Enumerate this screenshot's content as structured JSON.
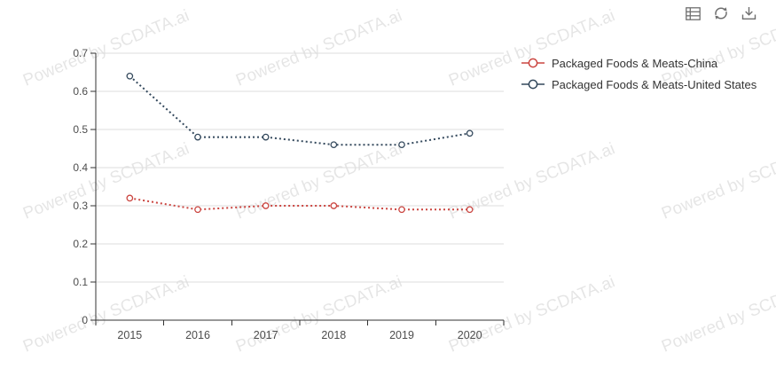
{
  "chart_data": {
    "type": "line",
    "title": "",
    "categories": [
      "2015",
      "2016",
      "2017",
      "2018",
      "2019",
      "2020"
    ],
    "series": [
      {
        "name": "Packaged Foods & Meats-China",
        "color": "#cb4641",
        "values": [
          0.32,
          0.29,
          0.3,
          0.3,
          0.29,
          0.29
        ]
      },
      {
        "name": "Packaged Foods & Meats-United States",
        "color": "#33485c",
        "values": [
          0.64,
          0.48,
          0.48,
          0.46,
          0.46,
          0.49
        ]
      }
    ],
    "xlabel": "",
    "ylabel": "",
    "ylim": [
      0,
      0.7
    ],
    "yticks": [
      "0",
      "0.1",
      "0.2",
      "0.3",
      "0.4",
      "0.5",
      "0.6",
      "0.7"
    ],
    "grid": true,
    "line_style": "dotted",
    "marker": "open-circle",
    "legend_position": "top-right"
  },
  "toolbar": {
    "icons": [
      "data-view",
      "refresh",
      "download"
    ]
  },
  "watermark": {
    "text": "Powered by SCDATA.ai"
  },
  "colors": {
    "background": "#ffffff",
    "grid_line": "#dddddd",
    "axis": "#333333",
    "tick_label": "#4d4d4d",
    "legend_text": "#333333",
    "icon": "#6f6f6f",
    "marker_fill": "#ffffff"
  }
}
